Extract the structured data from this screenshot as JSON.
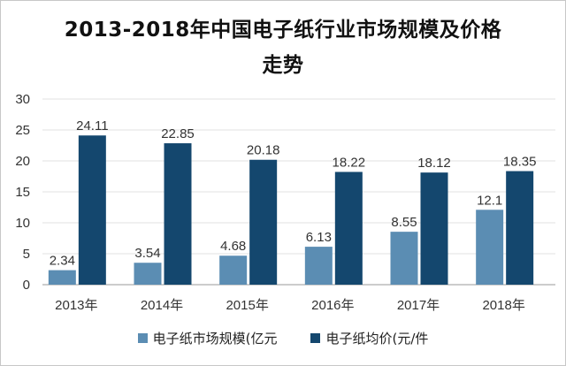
{
  "chart_data": {
    "type": "bar",
    "title_lines": [
      "2013-2018年中国电子纸行业市场规模及价格",
      "走势"
    ],
    "categories": [
      "2013年",
      "2014年",
      "2015年",
      "2016年",
      "2017年",
      "2018年"
    ],
    "series": [
      {
        "name": "电子纸市场规模(亿元",
        "values": [
          2.34,
          3.54,
          4.68,
          6.13,
          8.55,
          12.1
        ],
        "value_labels": [
          "2.34",
          "3.54",
          "4.68",
          "6.13",
          "8.55",
          "12.1"
        ],
        "color": "#5b8db3"
      },
      {
        "name": "电子纸均价(元/件",
        "values": [
          24.11,
          22.85,
          20.18,
          18.22,
          18.12,
          18.35
        ],
        "value_labels": [
          "24.11",
          "22.85",
          "20.18",
          "18.22",
          "18.12",
          "18.35"
        ],
        "color": "#14476e"
      }
    ],
    "ylim": [
      0,
      30
    ],
    "yticks": [
      "0",
      "5",
      "10",
      "15",
      "20",
      "25",
      "30"
    ],
    "grid": true,
    "legend_position": "bottom"
  }
}
